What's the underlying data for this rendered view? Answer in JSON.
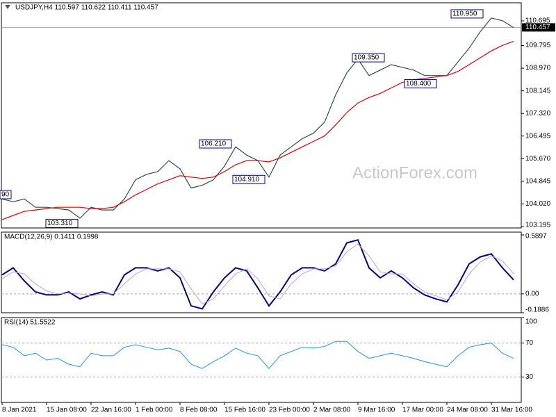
{
  "chart_data": [
    {
      "type": "line",
      "title": "USDJPY,H4  110.597 110.622 110.411 110.457",
      "watermark": "ActionForex.com",
      "ylim": [
        103.144,
        111.354
      ],
      "yticks": [
        103.195,
        {
          "value": 104.02,
          "label": "104.020"
        },
        104.845,
        {
          "value": 105.67,
          "label": "105.670"
        },
        106.495,
        {
          "value": 107.32,
          "label": "107.320"
        },
        108.145,
        {
          "value": 108.97,
          "label": "108.970"
        },
        109.795,
        110.695
      ],
      "price_marker": 110.457,
      "annotations": [
        {
          "label": "90"
        },
        {
          "label": "103.310",
          "value": 103.31
        },
        {
          "label": "106.210",
          "value": 106.21
        },
        {
          "label": "104.910",
          "value": 104.91
        },
        {
          "label": "109.350",
          "value": 109.35
        },
        {
          "label": "108.400",
          "value": 108.4
        },
        {
          "label": "110.950",
          "value": 110.95
        }
      ],
      "series": [
        {
          "name": "USDJPY",
          "color": "#2e4e40",
          "width": 1.2,
          "values": [
            104.2,
            104.1,
            104.2,
            103.9,
            103.9,
            103.85,
            103.8,
            103.5,
            103.9,
            103.8,
            103.8,
            104.2,
            104.9,
            105.1,
            105.2,
            105.6,
            105.3,
            104.6,
            104.7,
            104.9,
            105.4,
            106.1,
            105.8,
            105.6,
            105.0,
            105.8,
            106.1,
            106.4,
            106.6,
            107.0,
            108.0,
            108.8,
            109.3,
            108.7,
            108.9,
            109.1,
            109.0,
            108.9,
            108.7,
            108.7,
            108.7,
            109.2,
            109.7,
            110.3,
            110.8,
            110.7,
            110.45
          ]
        },
        {
          "name": "MA",
          "color": "#e00000",
          "width": 1.2,
          "values": [
            103.45,
            103.6,
            103.75,
            103.8,
            103.85,
            103.9,
            103.9,
            103.9,
            103.85,
            103.85,
            103.9,
            104.1,
            104.35,
            104.55,
            104.75,
            104.9,
            105.05,
            105.0,
            104.95,
            105.0,
            105.2,
            105.45,
            105.6,
            105.6,
            105.55,
            105.7,
            105.9,
            106.1,
            106.3,
            106.5,
            106.9,
            107.35,
            107.7,
            107.9,
            108.05,
            108.25,
            108.45,
            108.55,
            108.6,
            108.65,
            108.7,
            108.85,
            109.1,
            109.35,
            109.6,
            109.8,
            109.95
          ]
        }
      ]
    },
    {
      "type": "line",
      "title": "MACD(12,26,9) 0.1411 0.1998",
      "ylim": [
        -0.1886,
        0.6175
      ],
      "yticks": [
        0.5897,
        {
          "value": 0,
          "label": "0.00"
        },
        -0.1886
      ],
      "levels": [
        0
      ],
      "series": [
        {
          "name": "MACD",
          "color": "#00008b",
          "width": 2,
          "values": [
            0.19,
            0.26,
            0.13,
            0.02,
            -0.01,
            -0.01,
            0.02,
            -0.05,
            -0.01,
            0.02,
            -0.01,
            0.19,
            0.26,
            0.26,
            0.23,
            0.26,
            0.16,
            -0.12,
            -0.15,
            0.02,
            0.16,
            0.26,
            0.23,
            0.06,
            -0.12,
            0.02,
            0.19,
            0.26,
            0.26,
            0.23,
            0.3,
            0.51,
            0.54,
            0.26,
            0.16,
            0.23,
            0.16,
            0.06,
            -0.01,
            -0.05,
            -0.08,
            0.09,
            0.3,
            0.37,
            0.4,
            0.26,
            0.14
          ]
        },
        {
          "name": "Signal",
          "color": "#c8a0c8",
          "width": 1,
          "values": [
            0.15,
            0.22,
            0.2,
            0.1,
            0.03,
            0.0,
            0.01,
            0.0,
            -0.02,
            0.0,
            0.0,
            0.1,
            0.2,
            0.25,
            0.25,
            0.25,
            0.22,
            0.05,
            -0.1,
            -0.05,
            0.08,
            0.2,
            0.25,
            0.15,
            -0.02,
            -0.05,
            0.1,
            0.2,
            0.25,
            0.25,
            0.28,
            0.42,
            0.5,
            0.38,
            0.22,
            0.2,
            0.2,
            0.1,
            0.02,
            -0.02,
            -0.06,
            0.02,
            0.2,
            0.32,
            0.38,
            0.33,
            0.2
          ]
        }
      ]
    },
    {
      "type": "line",
      "title": "RSI(14) 51.5522",
      "ylim": [
        0,
        100
      ],
      "yticks": [
        100,
        70,
        30
      ],
      "levels": [
        70,
        30
      ],
      "categories": [
        "8 Jan 2021",
        null,
        null,
        null,
        "15 Jan 08:00",
        null,
        null,
        null,
        "22 Jan 16:00",
        null,
        null,
        null,
        "1 Feb 00:00",
        null,
        null,
        null,
        "8 Feb 08:00",
        null,
        null,
        null,
        "15 Feb 16:00",
        null,
        null,
        null,
        "23 Feb 00:00",
        null,
        null,
        null,
        "2 Mar 08:00",
        null,
        null,
        null,
        "9 Mar 16:00",
        null,
        null,
        null,
        "17 Mar 00:00",
        null,
        null,
        null,
        "24 Mar 08:00",
        null,
        null,
        null,
        "31 Mar 16:00",
        null,
        null
      ],
      "series": [
        {
          "name": "RSI",
          "color": "#1e90ff",
          "width": 1,
          "values": [
            68,
            65,
            55,
            58,
            50,
            52,
            45,
            42,
            58,
            55,
            55,
            65,
            68,
            65,
            62,
            64,
            60,
            45,
            40,
            48,
            55,
            64,
            58,
            55,
            40,
            55,
            60,
            65,
            64,
            66,
            72,
            72,
            60,
            52,
            55,
            58,
            55,
            52,
            48,
            45,
            42,
            55,
            65,
            68,
            70,
            58,
            52
          ]
        }
      ]
    }
  ]
}
